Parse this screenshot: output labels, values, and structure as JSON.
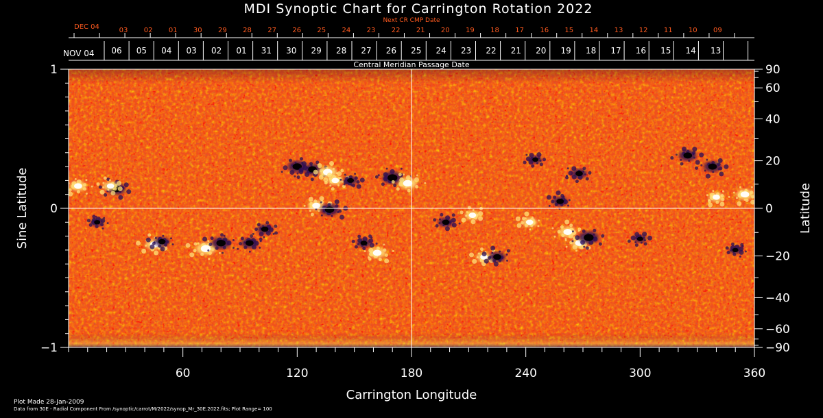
{
  "colors": {
    "background": "#000000",
    "axis": "#ffffff",
    "next_cr_dates": "#ff5a1f",
    "map_base": "#f0501e"
  },
  "footer": {
    "plot_made": "Plot Made 28-Jan-2009",
    "data_from": "Data from 30E - Radial Component From /synoptic/carrot/M/2022/synop_Mr_30E.2022.fits; Plot Range=  100"
  },
  "chart_data": {
    "type": "heatmap",
    "title": "MDI Synoptic Chart for Carrington Rotation 2022",
    "xlabel": "Carrington Longitude",
    "ylabel_left": "Sine Latitude",
    "ylabel_right": "Latitude",
    "xlim": [
      0,
      360
    ],
    "ylim_sine": [
      -1,
      1
    ],
    "x_ticks": [
      60,
      120,
      180,
      240,
      300,
      360
    ],
    "y_ticks_sine": [
      -1,
      0,
      1
    ],
    "y_ticks_lat": [
      -90,
      -60,
      -40,
      -20,
      0,
      20,
      40,
      60,
      90
    ],
    "plot_range": 100,
    "grid_lines": {
      "longitude": 180,
      "sine_latitude": 0
    },
    "top_axis_upper": {
      "title": "Next CR CMP Date",
      "start_label": "DEC 04",
      "labels": [
        "03",
        "02",
        "01",
        "30",
        "29",
        "28",
        "27",
        "26",
        "25",
        "24",
        "23",
        "22",
        "21",
        "20",
        "19",
        "18",
        "17",
        "16",
        "15",
        "14",
        "13",
        "12",
        "11",
        "10",
        "09"
      ]
    },
    "top_axis_lower": {
      "title": "Central Meridian Passage Date",
      "start_label": "NOV 04",
      "labels": [
        "06",
        "05",
        "04",
        "03",
        "02",
        "01",
        "31",
        "30",
        "29",
        "28",
        "27",
        "26",
        "25",
        "24",
        "23",
        "22",
        "21",
        "20",
        "19",
        "18",
        "17",
        "16",
        "15",
        "14",
        "13"
      ]
    },
    "magnetic_regions": [
      {
        "lon": 25,
        "sinlat": 0.14,
        "polarity": "negative",
        "strength": 0.9
      },
      {
        "lon": 22,
        "sinlat": 0.16,
        "polarity": "positive",
        "strength": 0.6
      },
      {
        "lon": 45,
        "sinlat": -0.26,
        "polarity": "positive",
        "strength": 0.8
      },
      {
        "lon": 49,
        "sinlat": -0.24,
        "polarity": "negative",
        "strength": 0.6
      },
      {
        "lon": 72,
        "sinlat": -0.29,
        "polarity": "positive",
        "strength": 1.0
      },
      {
        "lon": 80,
        "sinlat": -0.25,
        "polarity": "negative",
        "strength": 0.9
      },
      {
        "lon": 95,
        "sinlat": -0.25,
        "polarity": "negative",
        "strength": 0.7
      },
      {
        "lon": 103,
        "sinlat": -0.15,
        "polarity": "negative",
        "strength": 0.6
      },
      {
        "lon": 120,
        "sinlat": 0.3,
        "polarity": "negative",
        "strength": 0.9
      },
      {
        "lon": 128,
        "sinlat": 0.28,
        "polarity": "negative",
        "strength": 0.8
      },
      {
        "lon": 136,
        "sinlat": 0.26,
        "polarity": "positive",
        "strength": 0.9
      },
      {
        "lon": 140,
        "sinlat": 0.2,
        "polarity": "positive",
        "strength": 0.6
      },
      {
        "lon": 130,
        "sinlat": 0.02,
        "polarity": "positive",
        "strength": 0.7
      },
      {
        "lon": 137,
        "sinlat": -0.01,
        "polarity": "negative",
        "strength": 0.9
      },
      {
        "lon": 148,
        "sinlat": 0.2,
        "polarity": "negative",
        "strength": 0.5
      },
      {
        "lon": 162,
        "sinlat": -0.32,
        "polarity": "positive",
        "strength": 0.8
      },
      {
        "lon": 170,
        "sinlat": 0.22,
        "polarity": "negative",
        "strength": 1.0
      },
      {
        "lon": 178,
        "sinlat": 0.18,
        "polarity": "positive",
        "strength": 0.9
      },
      {
        "lon": 155,
        "sinlat": -0.25,
        "polarity": "negative",
        "strength": 0.5
      },
      {
        "lon": 198,
        "sinlat": -0.1,
        "polarity": "negative",
        "strength": 0.6
      },
      {
        "lon": 212,
        "sinlat": -0.05,
        "polarity": "positive",
        "strength": 0.6
      },
      {
        "lon": 218,
        "sinlat": -0.35,
        "polarity": "positive",
        "strength": 0.6
      },
      {
        "lon": 225,
        "sinlat": -0.35,
        "polarity": "negative",
        "strength": 0.7
      },
      {
        "lon": 242,
        "sinlat": -0.1,
        "polarity": "positive",
        "strength": 0.6
      },
      {
        "lon": 258,
        "sinlat": 0.05,
        "polarity": "negative",
        "strength": 0.6
      },
      {
        "lon": 262,
        "sinlat": -0.17,
        "polarity": "positive",
        "strength": 0.8
      },
      {
        "lon": 268,
        "sinlat": -0.25,
        "polarity": "positive",
        "strength": 0.7
      },
      {
        "lon": 273,
        "sinlat": -0.21,
        "polarity": "negative",
        "strength": 1.0
      },
      {
        "lon": 268,
        "sinlat": 0.25,
        "polarity": "negative",
        "strength": 0.6
      },
      {
        "lon": 245,
        "sinlat": 0.35,
        "polarity": "negative",
        "strength": 0.4
      },
      {
        "lon": 300,
        "sinlat": -0.22,
        "polarity": "negative",
        "strength": 0.4
      },
      {
        "lon": 325,
        "sinlat": 0.38,
        "polarity": "negative",
        "strength": 0.8
      },
      {
        "lon": 338,
        "sinlat": 0.3,
        "polarity": "negative",
        "strength": 0.8
      },
      {
        "lon": 355,
        "sinlat": 0.1,
        "polarity": "positive",
        "strength": 0.8
      },
      {
        "lon": 340,
        "sinlat": 0.08,
        "polarity": "positive",
        "strength": 0.6
      },
      {
        "lon": 5,
        "sinlat": 0.16,
        "polarity": "positive",
        "strength": 0.7
      },
      {
        "lon": 15,
        "sinlat": -0.1,
        "polarity": "negative",
        "strength": 0.4
      },
      {
        "lon": 350,
        "sinlat": -0.3,
        "polarity": "negative",
        "strength": 0.4
      }
    ]
  }
}
